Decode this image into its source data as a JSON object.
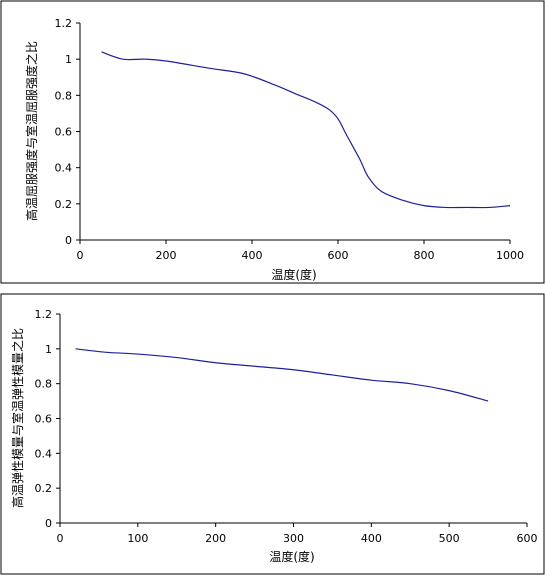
{
  "chart_data": [
    {
      "type": "line",
      "xlabel": "温度(度)",
      "ylabel": "高温屈服强度与室温屈服强度之比",
      "xlim": [
        0,
        1000
      ],
      "ylim": [
        0,
        1.2
      ],
      "xticks": [
        0,
        200,
        400,
        600,
        800,
        1000
      ],
      "yticks": [
        0,
        0.2,
        0.4,
        0.6,
        0.8,
        1,
        1.2
      ],
      "grid": false,
      "series": [
        {
          "color": "#1f1f9e",
          "x": [
            50,
            100,
            150,
            200,
            300,
            380,
            450,
            500,
            550,
            580,
            600,
            620,
            650,
            670,
            700,
            750,
            800,
            850,
            900,
            950,
            1000
          ],
          "y": [
            1.04,
            1.0,
            1.0,
            0.99,
            0.95,
            0.92,
            0.86,
            0.81,
            0.76,
            0.72,
            0.67,
            0.58,
            0.45,
            0.35,
            0.27,
            0.22,
            0.19,
            0.18,
            0.18,
            0.18,
            0.19
          ]
        }
      ]
    },
    {
      "type": "line",
      "xlabel": "温度(度)",
      "ylabel": "高温弹性模量与室温弹性模量之比",
      "xlim": [
        0,
        600
      ],
      "ylim": [
        0,
        1.2
      ],
      "xticks": [
        0,
        100,
        200,
        300,
        400,
        500,
        600
      ],
      "yticks": [
        0,
        0.2,
        0.4,
        0.6,
        0.8,
        1,
        1.2
      ],
      "grid": false,
      "series": [
        {
          "color": "#1f1f9e",
          "x": [
            20,
            60,
            100,
            150,
            200,
            250,
            300,
            350,
            400,
            450,
            500,
            550
          ],
          "y": [
            1.0,
            0.98,
            0.97,
            0.95,
            0.92,
            0.9,
            0.88,
            0.85,
            0.82,
            0.8,
            0.76,
            0.7
          ]
        }
      ]
    }
  ]
}
